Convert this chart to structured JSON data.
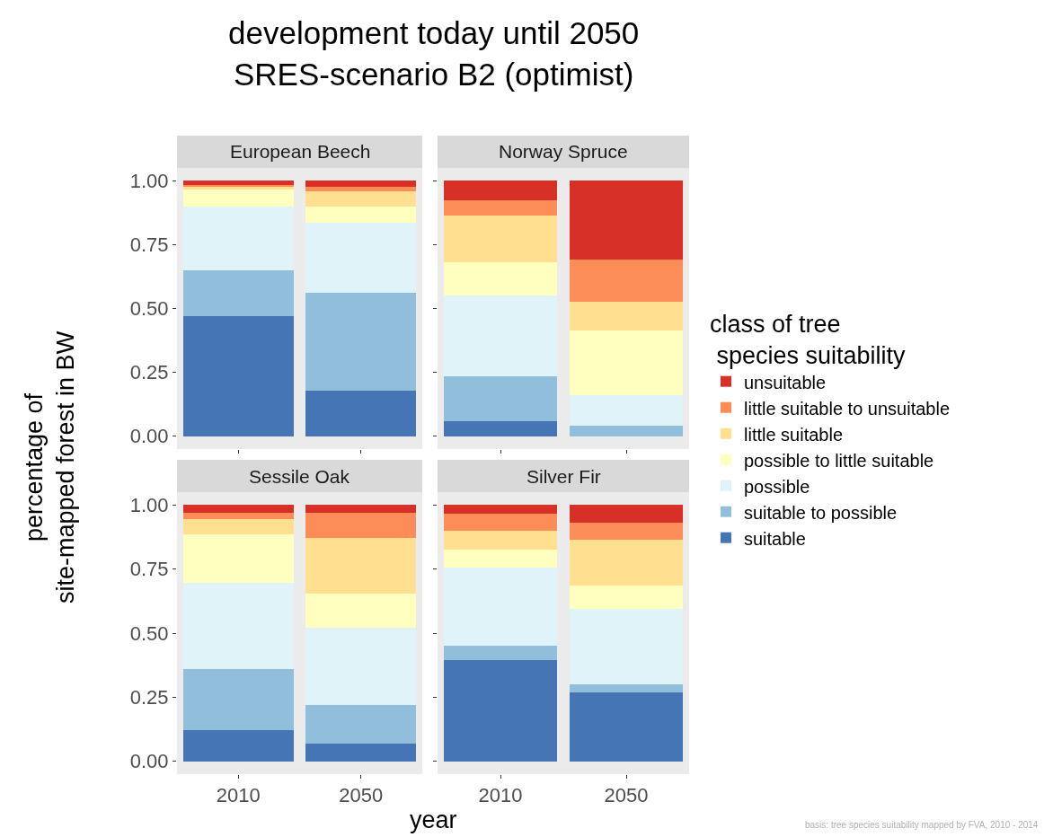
{
  "chart_data": [
    {
      "type": "bar",
      "title": "European Beech",
      "ylabel": "percentage of\nsite-mapped forest in BW",
      "legend_title": "class of tree\n species suitability",
      "legend": "right",
      "stacked": true,
      "tick_labels": "y",
      "annotations": [
        "development today until 2050\nSRES-scenario B2 (optimist)",
        "basis: tree species suitability mapped by FVA, 2010 - 2014"
      ],
      "categories": [
        "2010",
        "2050"
      ],
      "ylim": [
        -0.05,
        1.05
      ],
      "yticks": [
        {
          "value": 0,
          "label": "0.00"
        },
        {
          "value": 0.25,
          "label": "0.25"
        },
        {
          "value": 0.5,
          "label": "0.50"
        },
        {
          "value": 0.75,
          "label": "0.75"
        },
        {
          "value": 1,
          "label": "1.00"
        }
      ],
      "series": [
        {
          "name": "suitable",
          "color": "#4575b4",
          "values": [
            0.47,
            0.18
          ]
        },
        {
          "name": "suitable to possible",
          "color": "#91bfdb",
          "values": [
            0.18,
            0.38
          ]
        },
        {
          "name": "possible",
          "color": "#e0f3f8",
          "values": [
            0.25,
            0.275
          ]
        },
        {
          "name": "possible to little suitable",
          "color": "#ffffbf",
          "values": [
            0.065,
            0.065
          ]
        },
        {
          "name": "little suitable",
          "color": "#fee090",
          "values": [
            0.01,
            0.06
          ]
        },
        {
          "name": "little suitable to unsuitable",
          "color": "#fc8d59",
          "values": [
            0.01,
            0.015
          ]
        },
        {
          "name": "unsuitable",
          "color": "#d73027",
          "values": [
            0.015,
            0.025
          ]
        }
      ]
    },
    {
      "type": "bar",
      "title": "Norway Spruce",
      "stacked": true,
      "tick_labels": false,
      "categories": [
        "2010",
        "2050"
      ],
      "ylim": [
        -0.05,
        1.05
      ],
      "yticks": [
        {
          "value": 0,
          "label": null
        },
        {
          "value": 0.25,
          "label": null
        },
        {
          "value": 0.5,
          "label": null
        },
        {
          "value": 0.75,
          "label": null
        },
        {
          "value": 1,
          "label": null
        }
      ],
      "series": [
        {
          "color": "#4575b4",
          "values": [
            0.06,
            0
          ]
        },
        {
          "color": "#91bfdb",
          "values": [
            0.175,
            0.04
          ]
        },
        {
          "color": "#e0f3f8",
          "values": [
            0.315,
            0.12
          ]
        },
        {
          "color": "#ffffbf",
          "values": [
            0.13,
            0.255
          ]
        },
        {
          "color": "#fee090",
          "values": [
            0.185,
            0.11
          ]
        },
        {
          "color": "#fc8d59",
          "values": [
            0.06,
            0.165
          ]
        },
        {
          "color": "#d73027",
          "values": [
            0.075,
            0.31
          ]
        }
      ]
    },
    {
      "type": "bar",
      "title": "Sessile Oak",
      "xlabel": "year",
      "stacked": true,
      "categories": [
        "2010",
        "2050"
      ],
      "ylim": [
        -0.05,
        1.05
      ],
      "yticks": [
        {
          "value": 0,
          "label": "0.00"
        },
        {
          "value": 0.25,
          "label": "0.25"
        },
        {
          "value": 0.5,
          "label": "0.50"
        },
        {
          "value": 0.75,
          "label": "0.75"
        },
        {
          "value": 1,
          "label": "1.00"
        }
      ],
      "series": [
        {
          "color": "#4575b4",
          "values": [
            0.12,
            0.07
          ]
        },
        {
          "color": "#91bfdb",
          "values": [
            0.24,
            0.15
          ]
        },
        {
          "color": "#e0f3f8",
          "values": [
            0.335,
            0.3
          ]
        },
        {
          "color": "#ffffbf",
          "values": [
            0.19,
            0.135
          ]
        },
        {
          "color": "#fee090",
          "values": [
            0.06,
            0.215
          ]
        },
        {
          "color": "#fc8d59",
          "values": [
            0.025,
            0.1
          ]
        },
        {
          "color": "#d73027",
          "values": [
            0.03,
            0.03
          ]
        }
      ]
    },
    {
      "type": "bar",
      "title": "Silver Fir",
      "stacked": true,
      "tick_labels": "x",
      "categories": [
        "2010",
        "2050"
      ],
      "ylim": [
        -0.05,
        1.05
      ],
      "yticks": [
        {
          "value": 0,
          "label": null
        },
        {
          "value": 0.25,
          "label": null
        },
        {
          "value": 0.5,
          "label": null
        },
        {
          "value": 0.75,
          "label": null
        },
        {
          "value": 1,
          "label": null
        }
      ],
      "series": [
        {
          "color": "#4575b4",
          "values": [
            0.395,
            0.27
          ]
        },
        {
          "color": "#91bfdb",
          "values": [
            0.055,
            0.03
          ]
        },
        {
          "color": "#e0f3f8",
          "values": [
            0.305,
            0.295
          ]
        },
        {
          "color": "#ffffbf",
          "values": [
            0.07,
            0.09
          ]
        },
        {
          "color": "#fee090",
          "values": [
            0.075,
            0.18
          ]
        },
        {
          "color": "#fc8d59",
          "values": [
            0.065,
            0.065
          ]
        },
        {
          "color": "#d73027",
          "values": [
            0.035,
            0.07
          ]
        }
      ]
    }
  ]
}
